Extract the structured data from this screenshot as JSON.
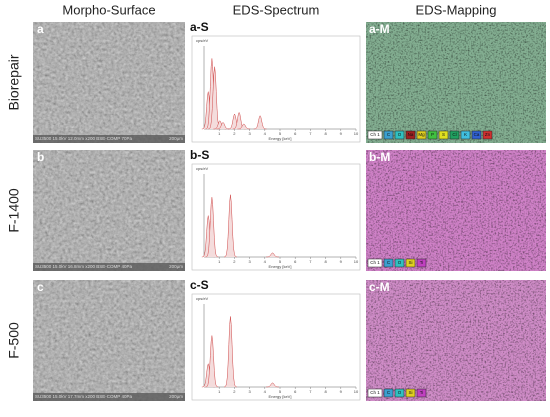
{
  "headers": [
    "Morpho-Surface",
    "EDS-Spectrum",
    "EDS-Mapping"
  ],
  "rows": [
    {
      "label": "Biorepair",
      "sem": {
        "tag": "a",
        "info": "SU3500 15.0kV 12.0mm x200 BSE-COMP 70Pa",
        "scale": "200μm"
      },
      "spectrum": {
        "tag": "a-S",
        "ylabel": "cps/eV",
        "xlabel": "Energy [keV]",
        "xlim": [
          0,
          10
        ],
        "ylim": [
          0,
          100
        ],
        "xticks": [
          1,
          2,
          3,
          4,
          5,
          6,
          7,
          8,
          9,
          10
        ],
        "peaks": [
          {
            "kev": 0.28,
            "height": 45
          },
          {
            "kev": 0.52,
            "height": 85
          },
          {
            "kev": 0.7,
            "height": 75
          },
          {
            "kev": 1.04,
            "height": 10
          },
          {
            "kev": 1.25,
            "height": 8
          },
          {
            "kev": 2.01,
            "height": 18
          },
          {
            "kev": 2.31,
            "height": 20
          },
          {
            "kev": 2.62,
            "height": 6
          },
          {
            "kev": 3.69,
            "height": 16
          }
        ]
      },
      "mapping": {
        "tag": "a-M",
        "base": "#3f7f7a",
        "overlay": "#c8d060",
        "legend": [
          {
            "name": "Ch 1",
            "color": "#ffffff"
          },
          {
            "name": "C",
            "color": "#3aa0d0"
          },
          {
            "name": "O",
            "color": "#30c0c0"
          },
          {
            "name": "Na",
            "color": "#a02020"
          },
          {
            "name": "Mg",
            "color": "#e0d020"
          },
          {
            "name": "P",
            "color": "#40c040"
          },
          {
            "name": "S",
            "color": "#e0e020"
          },
          {
            "name": "Cl",
            "color": "#20a060"
          },
          {
            "name": "K",
            "color": "#40c0e0"
          },
          {
            "name": "Ca",
            "color": "#3060d0"
          },
          {
            "name": "Zn",
            "color": "#d03030"
          }
        ]
      }
    },
    {
      "label": "F-1400",
      "sem": {
        "tag": "b",
        "info": "SU3500 15.0kV 16.8mm x200 BSE-COMP 40Pa",
        "scale": "200μm"
      },
      "spectrum": {
        "tag": "b-S",
        "ylabel": "cps/eV",
        "xlabel": "Energy [keV]",
        "xlim": [
          0,
          10
        ],
        "ylim": [
          0,
          100
        ],
        "xticks": [
          1,
          2,
          3,
          4,
          5,
          6,
          7,
          8,
          9,
          10
        ],
        "peaks": [
          {
            "kev": 0.28,
            "height": 50
          },
          {
            "kev": 0.52,
            "height": 72
          },
          {
            "kev": 1.74,
            "height": 75
          },
          {
            "kev": 4.51,
            "height": 5
          }
        ]
      },
      "mapping": {
        "tag": "b-M",
        "base": "#b050c0",
        "overlay": "#e0a040",
        "legend": [
          {
            "name": "Ch 1",
            "color": "#ffffff"
          },
          {
            "name": "C",
            "color": "#3aa0d0"
          },
          {
            "name": "O",
            "color": "#30c0c0"
          },
          {
            "name": "Si",
            "color": "#e0d020"
          },
          {
            "name": "Ti",
            "color": "#c040c0"
          }
        ]
      }
    },
    {
      "label": "F-500",
      "sem": {
        "tag": "c",
        "info": "SU3500 15.0kV 17.7mm x200 BSE-COMP 40Pa",
        "scale": "200μm"
      },
      "spectrum": {
        "tag": "c-S",
        "ylabel": "cps/eV",
        "xlabel": "Energy [keV]",
        "xlim": [
          0,
          10
        ],
        "ylim": [
          0,
          100
        ],
        "xticks": [
          1,
          2,
          3,
          4,
          5,
          6,
          7,
          8,
          9,
          10
        ],
        "peaks": [
          {
            "kev": 0.28,
            "height": 28
          },
          {
            "kev": 0.52,
            "height": 62
          },
          {
            "kev": 1.74,
            "height": 85
          },
          {
            "kev": 4.51,
            "height": 5
          }
        ]
      },
      "mapping": {
        "tag": "c-M",
        "base": "#b050c0",
        "overlay": "#e0c040",
        "legend": [
          {
            "name": "Ch 1",
            "color": "#ffffff"
          },
          {
            "name": "C",
            "color": "#3aa0d0"
          },
          {
            "name": "O",
            "color": "#30c0c0"
          },
          {
            "name": "Si",
            "color": "#e0d020"
          },
          {
            "name": "Ti",
            "color": "#c040c0"
          }
        ]
      }
    }
  ]
}
